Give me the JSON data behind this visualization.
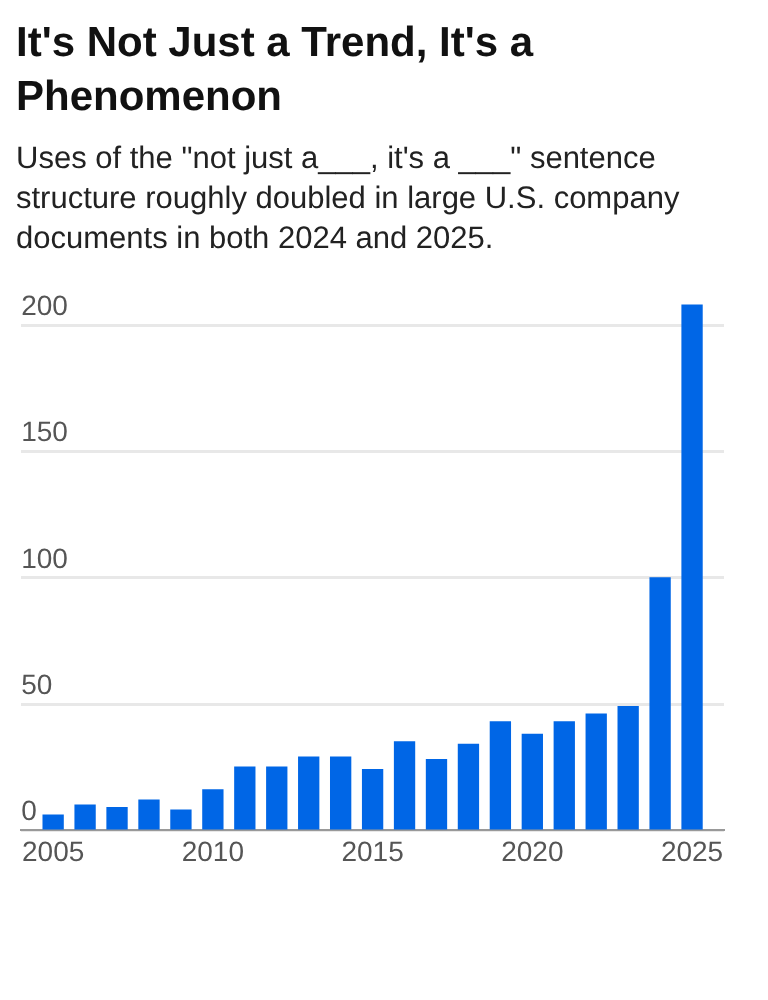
{
  "chart_data": {
    "type": "bar",
    "title": "It's Not Just a Trend, It's a Phenomenon",
    "subtitle": "Uses of the \"not just a___, it's a ___\" sentence structure roughly doubled in large U.S. company documents in both 2024 and 2025.",
    "x": [
      2005,
      2006,
      2007,
      2008,
      2009,
      2010,
      2011,
      2012,
      2013,
      2014,
      2015,
      2016,
      2017,
      2018,
      2019,
      2020,
      2021,
      2022,
      2023,
      2024,
      2025
    ],
    "values": [
      6,
      10,
      9,
      12,
      8,
      16,
      25,
      25,
      29,
      29,
      24,
      35,
      28,
      34,
      43,
      38,
      43,
      46,
      49,
      100,
      208
    ],
    "color": "#0066e6",
    "xlim": [
      2004,
      2026
    ],
    "xticks": [
      2005,
      2010,
      2015,
      2020,
      2025
    ],
    "ylim": [
      0,
      210
    ],
    "yticks": [
      0,
      50,
      100,
      150,
      200
    ],
    "grid": "y",
    "legend": false
  }
}
